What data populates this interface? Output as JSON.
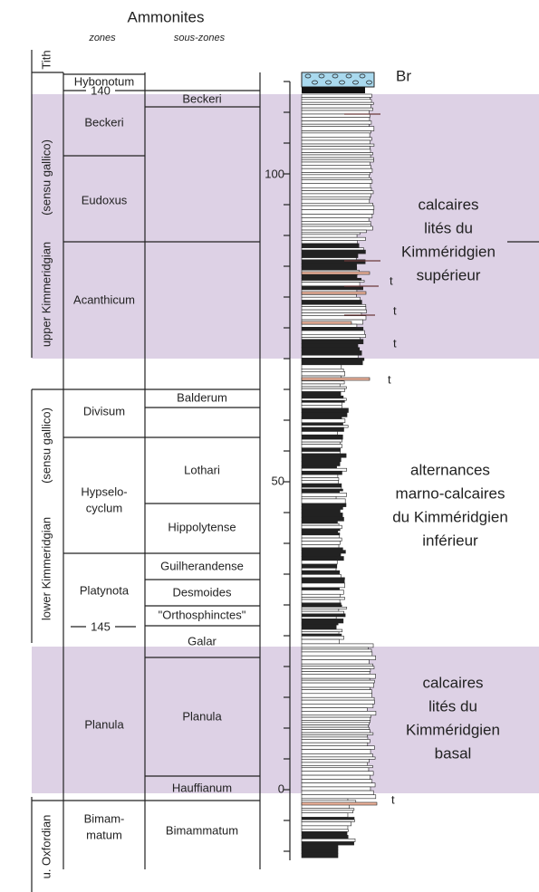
{
  "header": {
    "title": "Ammonites",
    "zones": "zones",
    "subzones": "sous-zones"
  },
  "stages": [
    "Tith",
    "upper Kimmeridgian",
    "(sensu gallico)",
    "lower Kimmeridgian",
    "(sensu gallico)",
    "u. Oxfordian"
  ],
  "zones": [
    "Hybonotum",
    "Beckeri",
    "Eudoxus",
    "Acanthicum",
    "Divisum",
    "Hypselo-",
    "cyclum",
    "Platynota",
    "Planula",
    "Bimam-",
    "matum"
  ],
  "ages": [
    "140",
    "145"
  ],
  "subzones": [
    "Beckeri",
    "Balderum",
    "Lothari",
    "Hippolytense",
    "Guilherandense",
    "Desmoides",
    "\"Orthosphinctes\"",
    "Galar",
    "Planula",
    "Hauffianum",
    "Bimammatum"
  ],
  "scale": [
    "100",
    "50",
    "0"
  ],
  "units": [
    [
      "calcaires",
      "lités du",
      "Kimméridgien",
      "supérieur"
    ],
    [
      "alternances",
      "marno-calcaires",
      "du Kimméridgien",
      "inférieur"
    ],
    [
      "calcaires",
      "lités du",
      "Kimméridgien",
      "basal"
    ]
  ],
  "markers": {
    "breccia": "Br",
    "t": "t"
  }
}
